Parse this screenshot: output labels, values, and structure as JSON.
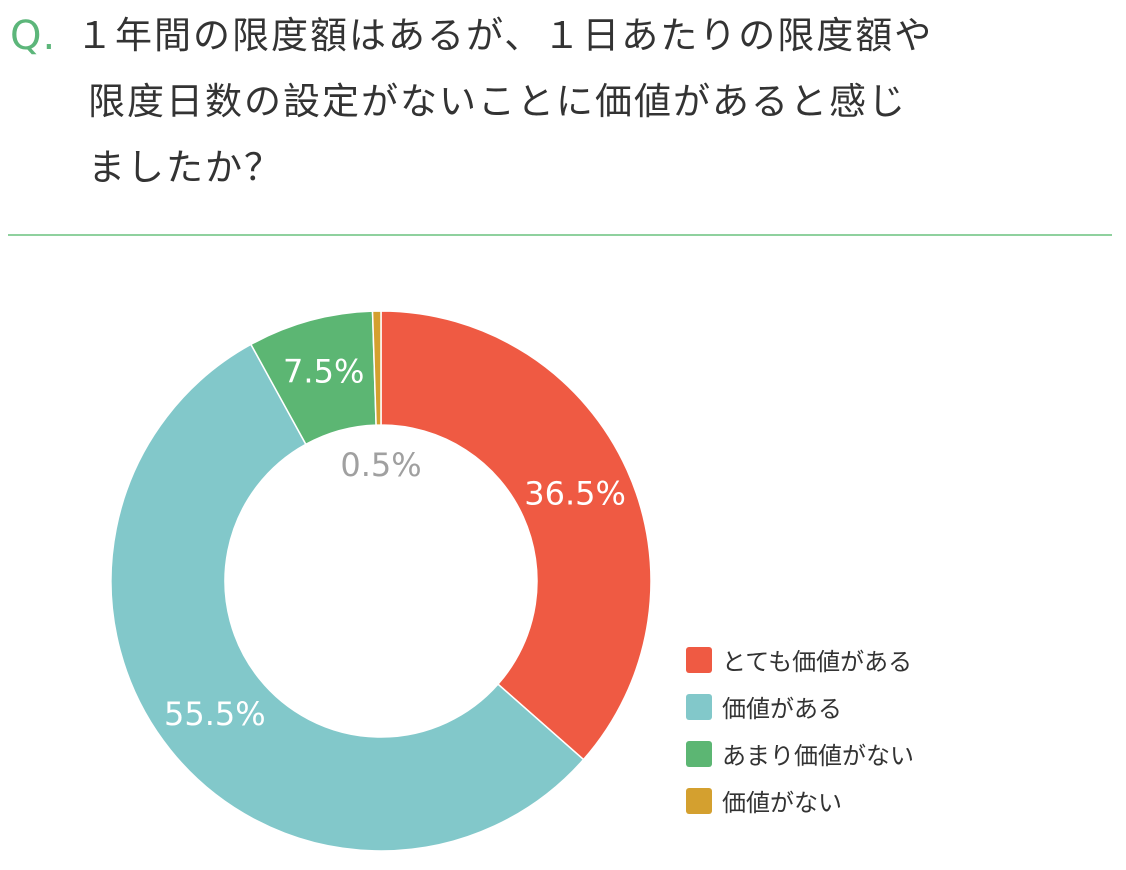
{
  "question": {
    "prefix": "Q.",
    "lines": [
      "１年間の限度額はあるが、１日あたりの限度額や",
      "限度日数の設定がないことに価値があると感じ",
      "ましたか？"
    ]
  },
  "colors": {
    "accent": "#5cb67a",
    "divider": "#8fd19e"
  },
  "chart_data": {
    "type": "pie",
    "donut": true,
    "categories": [
      "とても価値がある",
      "価値がある",
      "あまり価値がない",
      "価値がない"
    ],
    "values": [
      36.5,
      55.5,
      7.5,
      0.5
    ],
    "data_labels": [
      "36.5%",
      "55.5%",
      "7.5%",
      "0.5%"
    ],
    "colors": [
      "#ef5a43",
      "#82c8ca",
      "#5cb673",
      "#d4a02f"
    ],
    "label_colors": [
      "#ffffff",
      "#ffffff",
      "#ffffff",
      "#a0a0a0"
    ],
    "legend_position": "right-bottom",
    "start_angle": "top",
    "direction": "clockwise"
  }
}
